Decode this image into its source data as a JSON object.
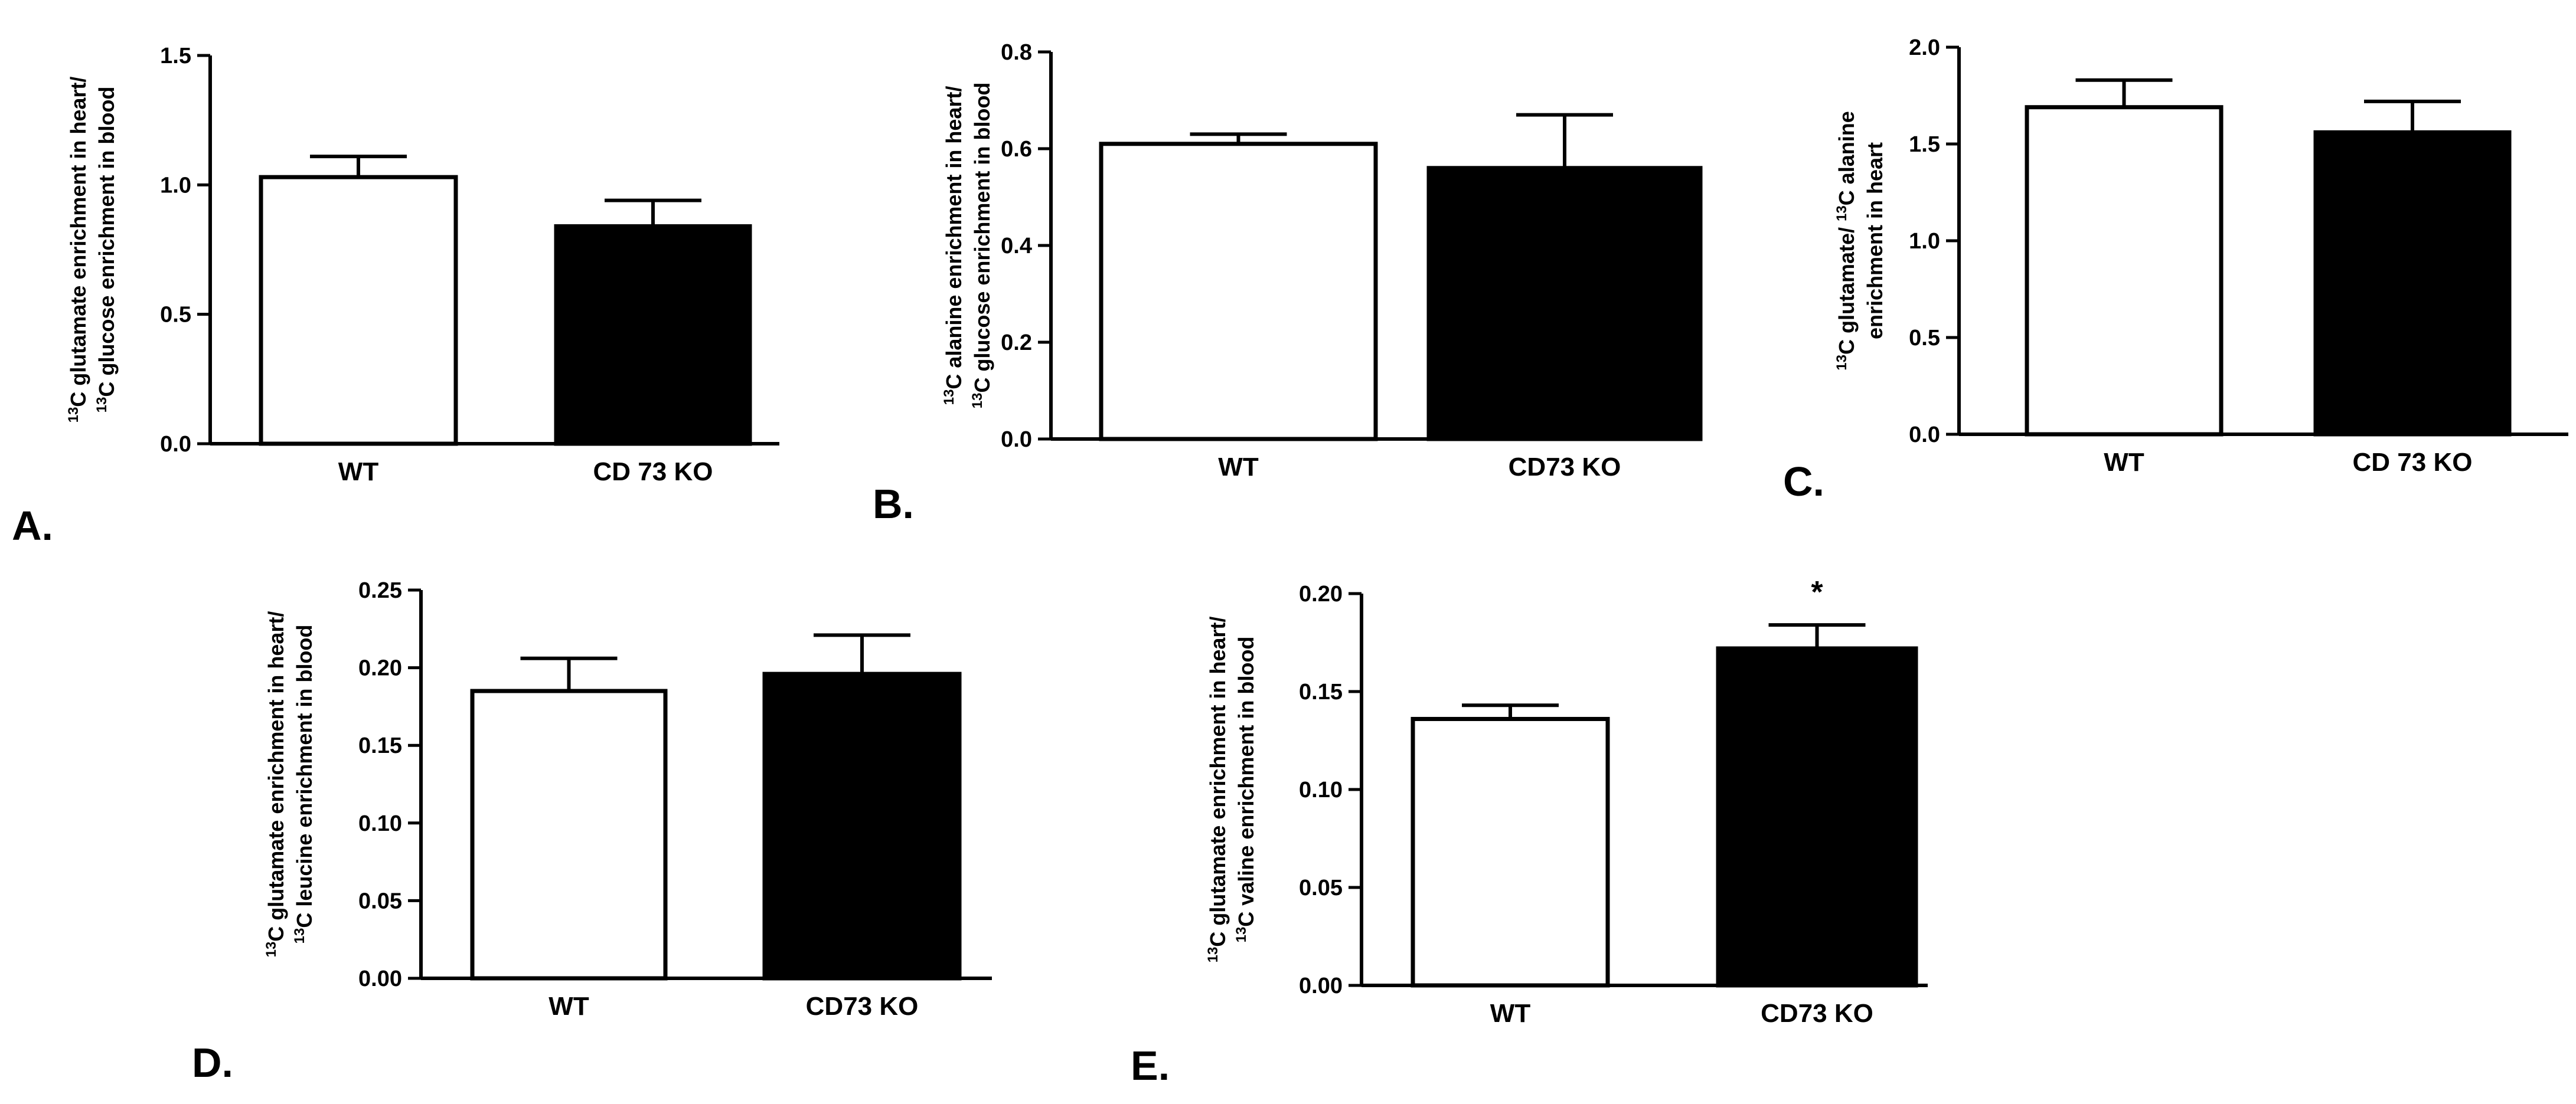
{
  "colors": {
    "wt_fill": "#ffffff",
    "ko_fill": "#000000",
    "axis": "#000000"
  },
  "chart_data": [
    {
      "type": "bar",
      "panel": "A.",
      "categories": [
        "WT",
        "CD 73 KO"
      ],
      "values": [
        1.03,
        0.84
      ],
      "errors": [
        0.08,
        0.1
      ],
      "ylim": [
        0,
        1.5
      ],
      "yticks": [
        "0.0",
        "0.5",
        "1.0",
        "1.5"
      ],
      "ylabel_lines": [
        "13",
        "C glutamate enrichment in heart/",
        "13",
        "C glucose enrichment in blood"
      ],
      "annotations": [
        "",
        ""
      ]
    },
    {
      "type": "bar",
      "panel": "B.",
      "categories": [
        "WT",
        "CD73 KO"
      ],
      "values": [
        0.61,
        0.56
      ],
      "errors": [
        0.02,
        0.11
      ],
      "ylim": [
        0,
        0.8
      ],
      "yticks": [
        "0.0",
        "0.2",
        "0.4",
        "0.6",
        "0.8"
      ],
      "ylabel_lines": [
        "13",
        "C alanine enrichment in heart/",
        "13",
        "C glucose enrichment in blood"
      ],
      "annotations": [
        "",
        ""
      ]
    },
    {
      "type": "bar",
      "panel": "C.",
      "categories": [
        "WT",
        "CD 73 KO"
      ],
      "values": [
        1.69,
        1.56
      ],
      "errors": [
        0.14,
        0.16
      ],
      "ylim": [
        0,
        2.0
      ],
      "yticks": [
        "0.0",
        "0.5",
        "1.0",
        "1.5",
        "2.0"
      ],
      "ylabel_lines": [
        "13",
        "C glutamate/ ",
        "13",
        "C alanine",
        "enrichment in heart"
      ],
      "annotations": [
        "",
        ""
      ]
    },
    {
      "type": "bar",
      "panel": "D.",
      "categories": [
        "WT",
        "CD73 KO"
      ],
      "values": [
        0.185,
        0.196
      ],
      "errors": [
        0.021,
        0.025
      ],
      "ylim": [
        0,
        0.25
      ],
      "yticks": [
        "0.00",
        "0.05",
        "0.10",
        "0.15",
        "0.20",
        "0.25"
      ],
      "ylabel_lines": [
        "13",
        "C glutamate enrichment in heart/",
        "13",
        "C leucine enrichment in blood"
      ],
      "annotations": [
        "",
        ""
      ]
    },
    {
      "type": "bar",
      "panel": "E.",
      "categories": [
        "WT",
        "CD73 KO"
      ],
      "values": [
        0.136,
        0.172
      ],
      "errors": [
        0.007,
        0.012
      ],
      "ylim": [
        0,
        0.2
      ],
      "yticks": [
        "0.00",
        "0.05",
        "0.10",
        "0.15",
        "0.20"
      ],
      "ylabel_lines": [
        "13",
        "C glutamate enrichment in heart/",
        "13",
        "C valine enrichment in blood"
      ],
      "annotations": [
        "",
        "*"
      ]
    }
  ]
}
